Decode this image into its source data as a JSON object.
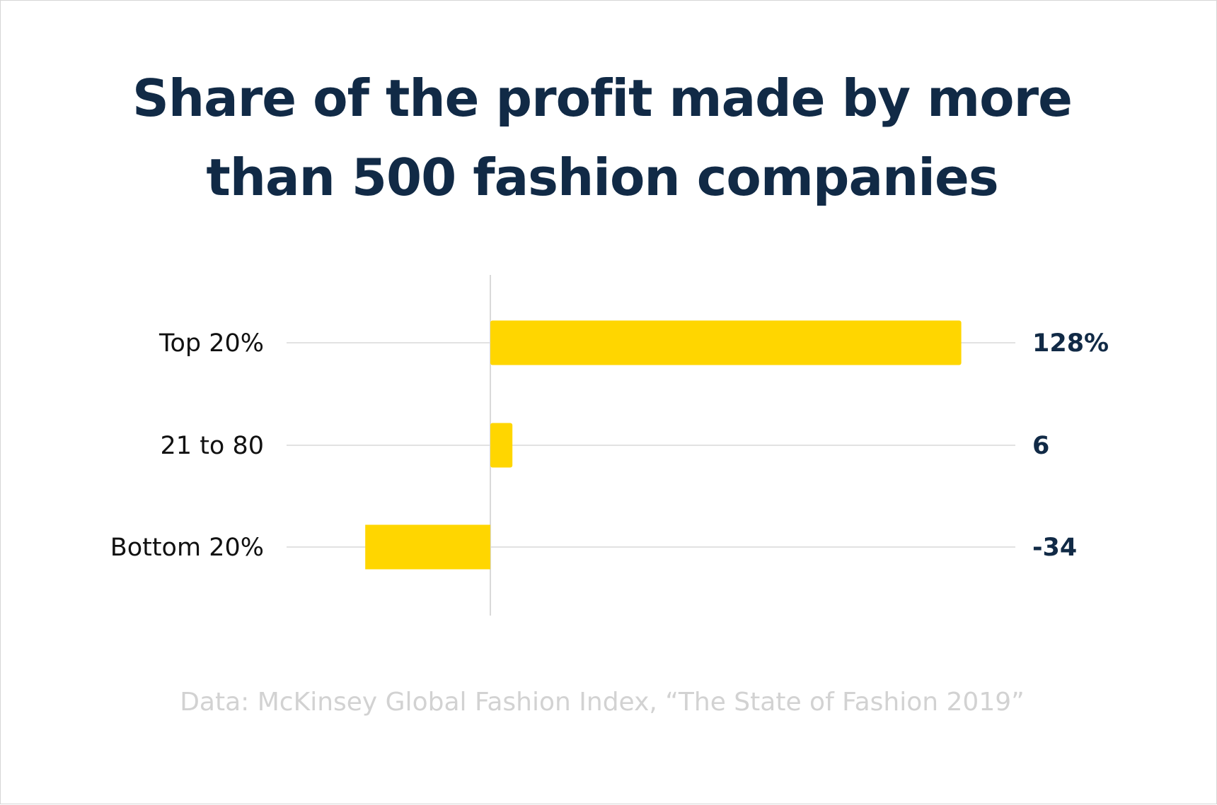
{
  "chart_data": {
    "type": "bar",
    "orientation": "horizontal",
    "title": "Share of the profit made by more than 500 fashion companies",
    "categories": [
      "Top 20%",
      "21 to 80",
      "Bottom 20%"
    ],
    "values": [
      128,
      6,
      -34
    ],
    "value_labels": [
      "128%",
      "6",
      "-34"
    ],
    "xlim": [
      -50,
      150
    ],
    "grid": true,
    "legend": "none",
    "colors": {
      "bar": "#FFD600",
      "title": "#112A46",
      "value_label": "#112A46",
      "gridline": "#D9D9D9",
      "source": "#D2D2D2"
    },
    "source": "Data: McKinsey Global Fashion Index, “The State of Fashion 2019”"
  }
}
